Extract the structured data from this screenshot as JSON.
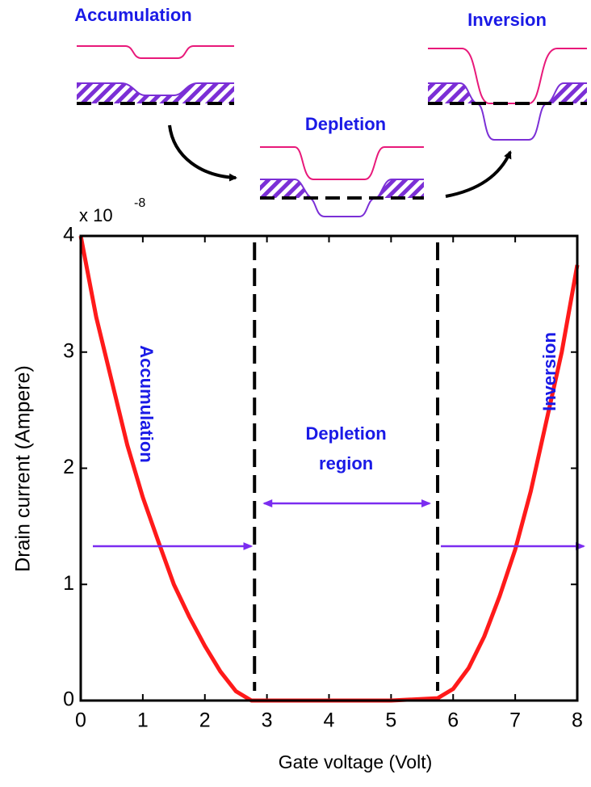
{
  "chart_data": {
    "type": "line",
    "diagram_labels": [
      "Accumulation",
      "Depletion",
      "Inversion"
    ],
    "multiplier": {
      "base": "x 10",
      "exponent": "-8"
    },
    "xlabel": "Gate voltage (Volt)",
    "ylabel": "Drain current (Ampere)",
    "x": [
      0,
      0.25,
      0.5,
      0.75,
      1,
      1.25,
      1.5,
      1.75,
      2,
      2.25,
      2.5,
      2.75,
      3,
      4,
      5,
      5.75,
      6,
      6.25,
      6.5,
      6.75,
      7,
      7.25,
      7.5,
      7.75,
      8
    ],
    "series": [
      {
        "color": "#ff1a1a",
        "values": [
          4,
          3.3,
          2.75,
          2.2,
          1.75,
          1.37,
          1.0,
          0.72,
          0.47,
          0.25,
          0.08,
          0,
          0,
          0,
          0,
          0.02,
          0.1,
          0.28,
          0.55,
          0.9,
          1.3,
          1.8,
          2.4,
          3.0,
          3.75
        ]
      }
    ],
    "vlines": [
      2.8,
      5.75
    ],
    "region_labels": {
      "left": "Accumulation",
      "middle": [
        "Depletion",
        "region"
      ],
      "right": "Inversion"
    },
    "xlim": [
      0,
      8
    ],
    "ylim": [
      0,
      4
    ],
    "xticks": [
      0,
      1,
      2,
      3,
      4,
      5,
      6,
      7,
      8
    ],
    "yticks": [
      0,
      1,
      2,
      3,
      4
    ]
  }
}
